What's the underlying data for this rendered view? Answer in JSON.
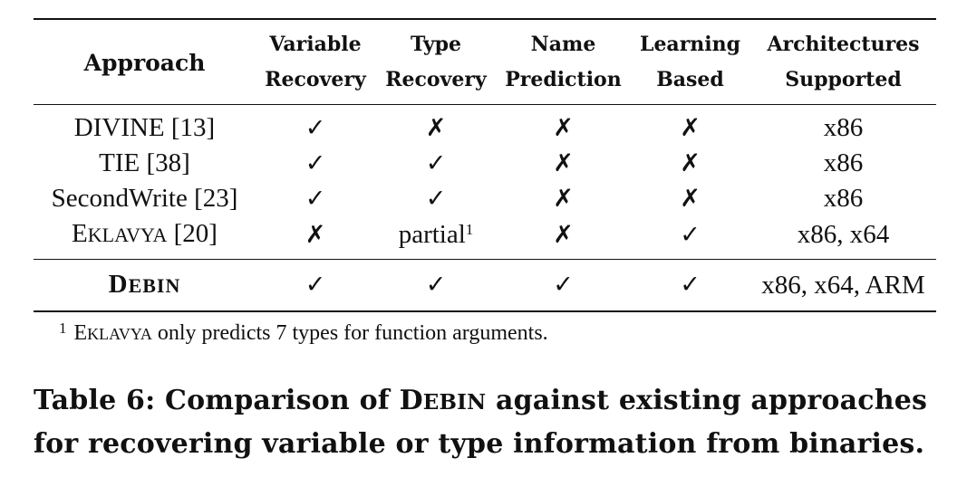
{
  "table": {
    "headers": [
      {
        "line1": "Approach",
        "line2": ""
      },
      {
        "line1": "Variable",
        "line2": "Recovery"
      },
      {
        "line1": "Type",
        "line2": "Recovery"
      },
      {
        "line1": "Name",
        "line2": "Prediction"
      },
      {
        "line1": "Learning",
        "line2": "Based"
      },
      {
        "line1": "Architectures",
        "line2": "Supported"
      }
    ],
    "rows": [
      {
        "approach": "DIVINE [13]",
        "variable_recovery": "✓",
        "type_recovery": "✗",
        "name_prediction": "✗",
        "learning_based": "✗",
        "architectures": "x86"
      },
      {
        "approach": "TIE [38]",
        "variable_recovery": "✓",
        "type_recovery": "✓",
        "name_prediction": "✗",
        "learning_based": "✗",
        "architectures": "x86"
      },
      {
        "approach": "SecondWrite [23]",
        "variable_recovery": "✓",
        "type_recovery": "✓",
        "name_prediction": "✗",
        "learning_based": "✗",
        "architectures": "x86"
      },
      {
        "approach_first": "E",
        "approach_rest": "KLAVYA",
        "approach_ref": " [20]",
        "variable_recovery": "✗",
        "type_recovery": "partial",
        "type_recovery_sup": "1",
        "name_prediction": "✗",
        "learning_based": "✓",
        "architectures": "x86, x64"
      }
    ],
    "final_row": {
      "approach_first": "D",
      "approach_rest": "EBIN",
      "variable_recovery": "✓",
      "type_recovery": "✓",
      "name_prediction": "✓",
      "learning_based": "✓",
      "architectures": "x86, x64, ARM"
    }
  },
  "footnote": {
    "marker": "1",
    "name_first": "E",
    "name_rest": "KLAVYA",
    "text": " only predicts 7 types for function arguments."
  },
  "caption": {
    "part1": "Table 6: Comparison of ",
    "name_first": "D",
    "name_rest": "EBIN",
    "part2": " against existing approaches for recovering variable or type information from binaries."
  }
}
